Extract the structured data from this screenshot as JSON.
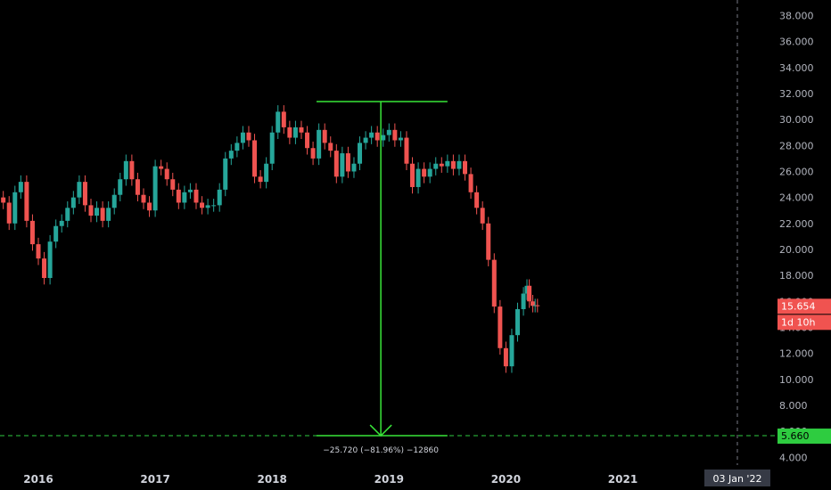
{
  "chart_data": {
    "type": "candlestick",
    "x_axis": {
      "ticks": [
        "2016",
        "2017",
        "2018",
        "2019",
        "2020",
        "2021"
      ],
      "crosshair_label": "03 Jan '22"
    },
    "y_axis": {
      "ticks": [
        "4.000",
        "6.000",
        "8.000",
        "10.000",
        "12.000",
        "14.000",
        "16.000",
        "18.000",
        "20.000",
        "22.000",
        "24.000",
        "26.000",
        "28.000",
        "30.000",
        "32.000",
        "34.000",
        "36.000",
        "38.000"
      ],
      "range": [
        3.4,
        39.2
      ]
    },
    "series": [
      {
        "x": [
          2015.7,
          2015.75,
          2015.8,
          2015.85,
          2015.9,
          2015.95,
          2016.0,
          2016.05,
          2016.1,
          2016.15,
          2016.2,
          2016.25,
          2016.3,
          2016.35,
          2016.4,
          2016.45,
          2016.5,
          2016.55,
          2016.6,
          2016.65,
          2016.7,
          2016.75,
          2016.8,
          2016.85,
          2016.9,
          2016.95,
          2017.0,
          2017.05,
          2017.1,
          2017.15,
          2017.2,
          2017.25,
          2017.3,
          2017.35,
          2017.4,
          2017.45,
          2017.5,
          2017.55,
          2017.6,
          2017.65,
          2017.7,
          2017.75,
          2017.8,
          2017.85,
          2017.9,
          2017.95,
          2018.0,
          2018.05,
          2018.1,
          2018.15,
          2018.2,
          2018.25,
          2018.3,
          2018.35,
          2018.4,
          2018.45,
          2018.5,
          2018.55,
          2018.6,
          2018.65,
          2018.7,
          2018.75,
          2018.8,
          2018.85,
          2018.9,
          2018.95,
          2019.0,
          2019.05,
          2019.1,
          2019.15,
          2019.2,
          2019.25,
          2019.3,
          2019.35,
          2019.4,
          2019.45,
          2019.5,
          2019.55,
          2019.6,
          2019.65,
          2019.7,
          2019.75,
          2019.8,
          2019.85,
          2019.9,
          2019.95,
          2020.0,
          2020.05,
          2020.1,
          2020.15,
          2020.18,
          2020.2,
          2020.23,
          2020.25,
          2020.27
        ],
        "close": [
          23.6,
          22.0,
          24.4,
          25.2,
          22.2,
          20.4,
          19.3,
          17.8,
          20.6,
          21.8,
          22.2,
          23.2,
          24.0,
          25.2,
          23.4,
          22.6,
          23.2,
          22.2,
          23.2,
          24.2,
          25.4,
          26.8,
          25.4,
          24.2,
          23.6,
          23.0,
          26.4,
          26.2,
          25.4,
          24.6,
          23.6,
          24.4,
          24.6,
          23.6,
          23.2,
          23.4,
          23.4,
          24.6,
          27.0,
          27.6,
          28.2,
          29.0,
          28.4,
          25.6,
          25.2,
          26.6,
          29.0,
          30.6,
          29.4,
          28.6,
          29.4,
          29.0,
          27.8,
          27.0,
          29.2,
          28.2,
          27.6,
          25.6,
          27.4,
          26.0,
          26.6,
          28.2,
          28.6,
          29.0,
          28.4,
          28.8,
          29.2,
          28.4,
          28.6,
          26.6,
          24.8,
          26.2,
          25.6,
          26.2,
          26.6,
          26.4,
          26.8,
          26.2,
          26.8,
          25.8,
          24.4,
          23.2,
          22.0,
          19.2,
          15.6,
          12.4,
          11.0,
          13.4,
          15.4,
          16.6,
          17.2,
          16.0,
          15.654,
          15.7,
          15.654
        ],
        "open": [
          24.0,
          23.6,
          22.0,
          24.4,
          25.2,
          22.2,
          20.4,
          19.3,
          17.8,
          20.6,
          21.8,
          22.2,
          23.2,
          24.0,
          25.2,
          23.4,
          22.6,
          23.2,
          22.2,
          23.2,
          24.2,
          25.4,
          26.8,
          25.4,
          24.2,
          23.6,
          23.0,
          26.4,
          26.2,
          25.4,
          24.6,
          23.6,
          24.4,
          24.6,
          23.6,
          23.2,
          23.4,
          23.4,
          24.6,
          27.0,
          27.6,
          28.2,
          29.0,
          28.4,
          25.6,
          25.2,
          26.6,
          29.0,
          30.6,
          29.4,
          28.6,
          29.4,
          29.0,
          27.8,
          27.0,
          29.2,
          28.2,
          27.6,
          25.6,
          27.4,
          26.0,
          26.6,
          28.2,
          28.6,
          29.0,
          28.4,
          28.8,
          29.2,
          28.4,
          28.6,
          26.6,
          24.8,
          26.2,
          25.6,
          26.2,
          26.6,
          26.4,
          26.8,
          26.2,
          26.8,
          25.8,
          24.4,
          23.2,
          22.0,
          19.2,
          15.6,
          12.4,
          11.0,
          13.4,
          15.4,
          16.6,
          17.2,
          16.0,
          15.654,
          15.7
        ],
        "last_price": "15.654",
        "countdown": "1d 10h"
      }
    ],
    "measure": {
      "from_price": 31.38,
      "to_price": 5.66,
      "x_start": 2018.38,
      "x_end": 2019.5,
      "x_center": 2018.93,
      "label": "−25.720 (−81.96%) −12860"
    },
    "horizontal_line": {
      "price": 5.66,
      "label": "5.660"
    },
    "crosshair": {
      "x": 2021.98
    },
    "colors": {
      "up": "#26a69a",
      "down": "#ef5350",
      "measure": "#39e639",
      "price_badge": "#f05350",
      "line_badge": "#2ecc40",
      "crosshair": "#787b86",
      "grid_background": "#000000"
    }
  }
}
